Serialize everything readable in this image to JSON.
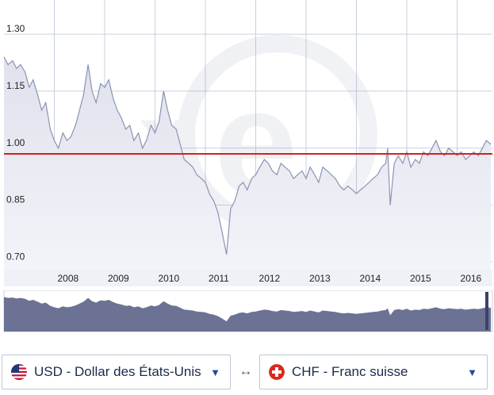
{
  "chart_data": {
    "type": "area",
    "pair": "USD/CHF",
    "x_tick_labels": [
      "2008",
      "2009",
      "2010",
      "2011",
      "2012",
      "2013",
      "2014",
      "2015",
      "2016"
    ],
    "y_tick_labels": [
      "1.30",
      "1.15",
      "1.00",
      "0.85",
      "0.70"
    ],
    "y_ticks": [
      1.3,
      1.15,
      1.0,
      0.85,
      0.7
    ],
    "ylim": [
      0.68,
      1.39
    ],
    "xlim": [
      2007.0,
      2016.7
    ],
    "reference_line": 0.985,
    "grid": true,
    "series": [
      {
        "x": [
          2007.0,
          2007.08,
          2007.17,
          2007.25,
          2007.33,
          2007.42,
          2007.5,
          2007.58,
          2007.67,
          2007.75,
          2007.83,
          2007.92,
          2008.0,
          2008.08,
          2008.17,
          2008.25,
          2008.33,
          2008.42,
          2008.5,
          2008.58,
          2008.67,
          2008.75,
          2008.83,
          2008.92,
          2009.0,
          2009.08,
          2009.17,
          2009.25,
          2009.33,
          2009.42,
          2009.5,
          2009.58,
          2009.67,
          2009.75,
          2009.83,
          2009.92,
          2010.0,
          2010.08,
          2010.17,
          2010.25,
          2010.33,
          2010.42,
          2010.5,
          2010.58,
          2010.67,
          2010.75,
          2010.83,
          2010.92,
          2011.0,
          2011.08,
          2011.17,
          2011.25,
          2011.33,
          2011.42,
          2011.5,
          2011.58,
          2011.67,
          2011.75,
          2011.83,
          2011.92,
          2012.0,
          2012.08,
          2012.17,
          2012.25,
          2012.33,
          2012.42,
          2012.5,
          2012.58,
          2012.67,
          2012.75,
          2012.83,
          2012.92,
          2013.0,
          2013.08,
          2013.17,
          2013.25,
          2013.33,
          2013.42,
          2013.5,
          2013.58,
          2013.67,
          2013.75,
          2013.83,
          2013.92,
          2014.0,
          2014.08,
          2014.17,
          2014.25,
          2014.33,
          2014.42,
          2014.5,
          2014.58,
          2014.62,
          2014.67,
          2014.75,
          2014.83,
          2014.92,
          2015.0,
          2015.08,
          2015.17,
          2015.25,
          2015.33,
          2015.42,
          2015.5,
          2015.58,
          2015.67,
          2015.75,
          2015.83,
          2015.92,
          2016.0,
          2016.08,
          2016.17,
          2016.25,
          2016.33,
          2016.42,
          2016.5,
          2016.58,
          2016.67
        ],
        "values": [
          1.24,
          1.22,
          1.23,
          1.21,
          1.22,
          1.2,
          1.16,
          1.18,
          1.14,
          1.1,
          1.12,
          1.05,
          1.02,
          1.0,
          1.04,
          1.02,
          1.03,
          1.06,
          1.1,
          1.14,
          1.22,
          1.15,
          1.12,
          1.17,
          1.16,
          1.18,
          1.13,
          1.1,
          1.08,
          1.05,
          1.06,
          1.02,
          1.04,
          1.0,
          1.02,
          1.06,
          1.04,
          1.07,
          1.15,
          1.1,
          1.06,
          1.05,
          1.01,
          0.97,
          0.96,
          0.95,
          0.93,
          0.92,
          0.91,
          0.88,
          0.86,
          0.83,
          0.78,
          0.72,
          0.84,
          0.86,
          0.9,
          0.91,
          0.89,
          0.92,
          0.93,
          0.95,
          0.97,
          0.96,
          0.94,
          0.93,
          0.96,
          0.95,
          0.94,
          0.92,
          0.93,
          0.94,
          0.92,
          0.95,
          0.93,
          0.91,
          0.95,
          0.94,
          0.93,
          0.92,
          0.9,
          0.89,
          0.9,
          0.89,
          0.88,
          0.89,
          0.9,
          0.91,
          0.92,
          0.93,
          0.95,
          0.96,
          1.0,
          0.85,
          0.96,
          0.98,
          0.96,
          0.99,
          0.95,
          0.97,
          0.96,
          0.99,
          0.98,
          1.0,
          1.02,
          0.99,
          0.98,
          1.0,
          0.99,
          0.98,
          0.99,
          0.97,
          0.98,
          0.99,
          0.98,
          1.0,
          1.02,
          1.01
        ]
      }
    ]
  },
  "controls": {
    "from_currency": "USD - Dollar des États-Unis",
    "to_currency": "CHF - Franc suisse",
    "swap_symbol": "↔",
    "caret_symbol": "▼"
  },
  "colors": {
    "line": "#8a93b3",
    "area_top": "#dfe1ec",
    "area_bottom": "#f3f4f9",
    "reference": "#d6201f",
    "navigator_fill": "#6c7294",
    "grid": "#c9d1dd",
    "axis_band": "#eef1f6"
  },
  "icons": {
    "from_flag": "us-flag-icon",
    "to_flag": "swiss-flag-icon",
    "watermark": "xe-logo-icon"
  }
}
